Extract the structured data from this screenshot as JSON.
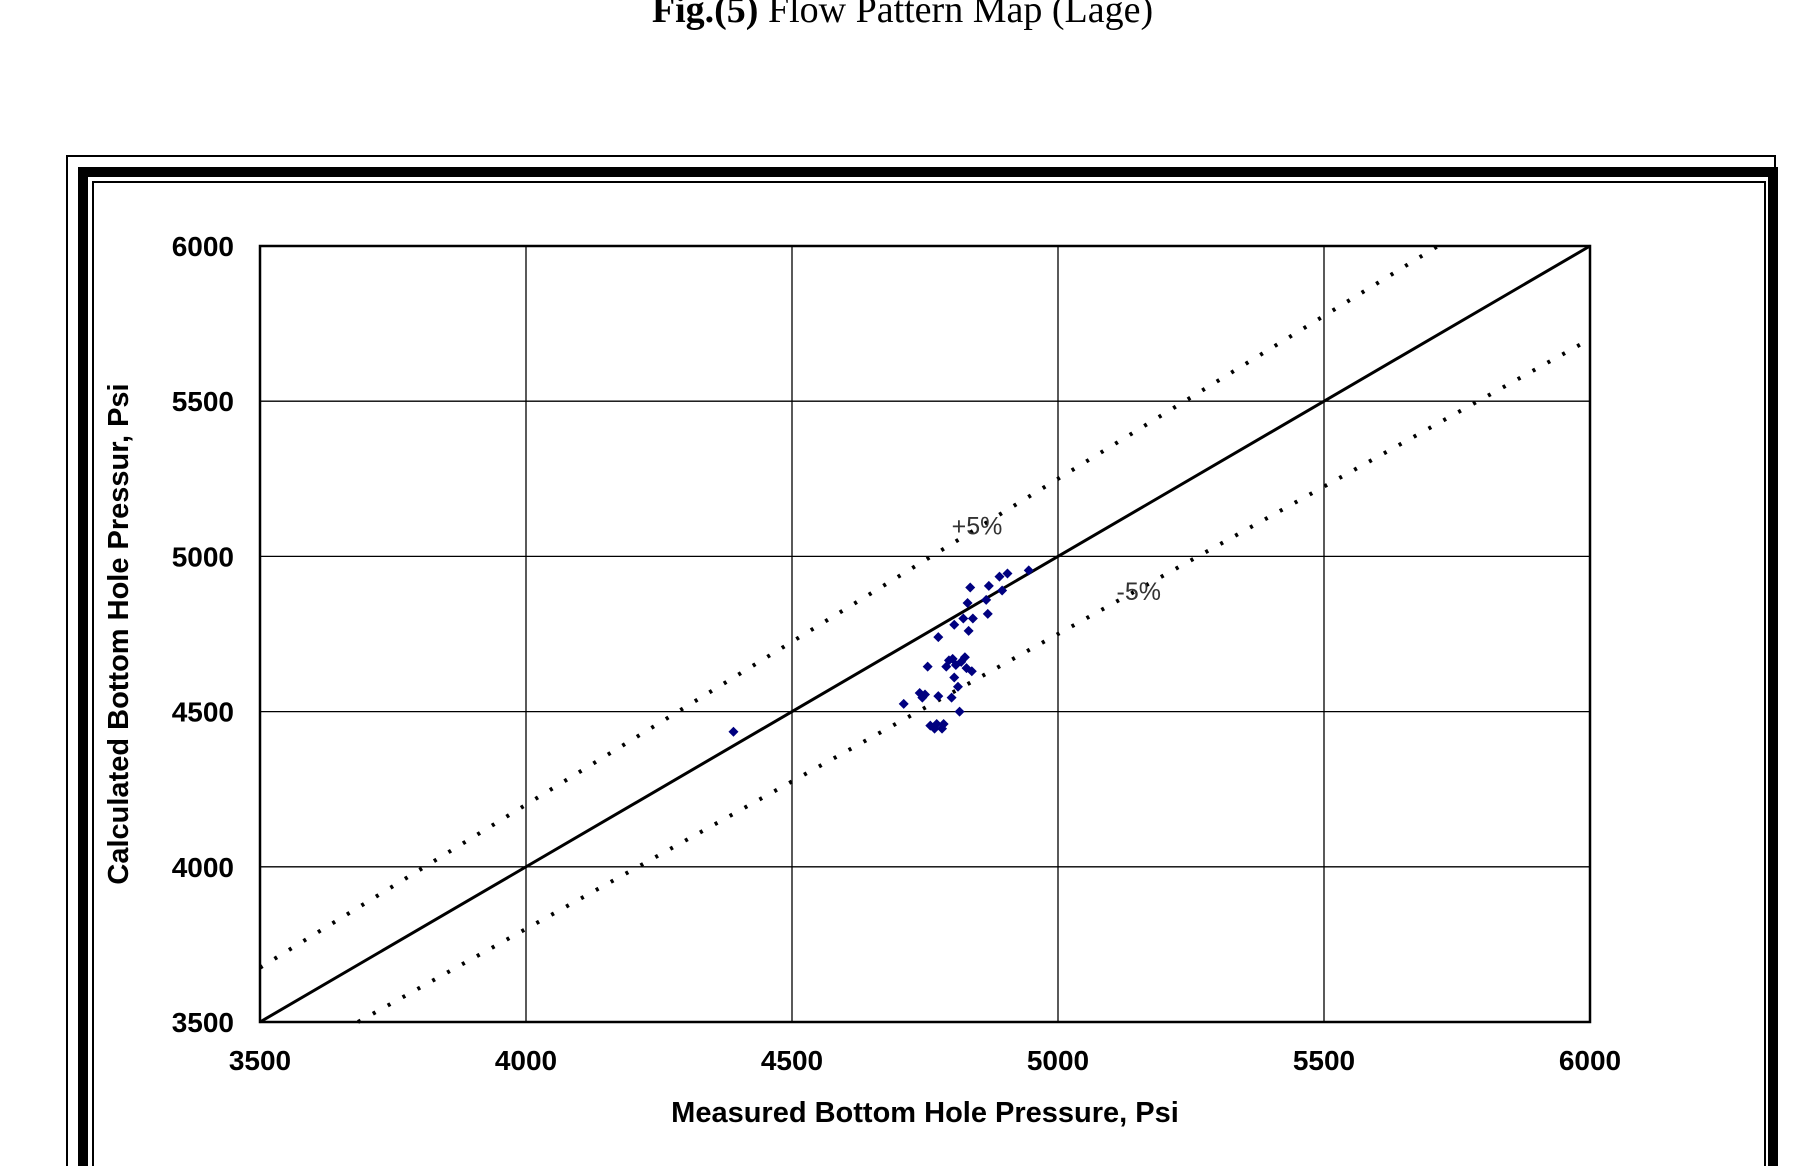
{
  "figure": {
    "title_bold": "Fig.(5)",
    "title_rest": " Flow Pattern Map (Lage)"
  },
  "chart_data": {
    "type": "scatter",
    "xlabel": "Measured Bottom Hole Pressure, Psi",
    "ylabel": "Calculated Bottom Hole Pressur, Psi",
    "xlim": [
      3500,
      6000
    ],
    "ylim": [
      3500,
      6000
    ],
    "xticks": [
      "3500",
      "4000",
      "4500",
      "5000",
      "5500",
      "6000"
    ],
    "yticks": [
      "3500",
      "4000",
      "4500",
      "5000",
      "5500",
      "6000"
    ],
    "grid": true,
    "marker_color": "#000080",
    "reference_lines": [
      {
        "label": "",
        "slope": 1.0,
        "style": "solid"
      },
      {
        "label": "+5%",
        "slope": 1.05,
        "style": "dotted"
      },
      {
        "label": "-5%",
        "slope": 0.95,
        "style": "dotted"
      }
    ],
    "annotations": [
      {
        "text": "+5%",
        "x": 4800,
        "y": 5070
      },
      {
        "text": "-5%",
        "x": 5110,
        "y": 4860
      }
    ],
    "points": [
      {
        "x": 4390,
        "y": 4435
      },
      {
        "x": 4710,
        "y": 4525
      },
      {
        "x": 4740,
        "y": 4560
      },
      {
        "x": 4745,
        "y": 4545
      },
      {
        "x": 4750,
        "y": 4555
      },
      {
        "x": 4755,
        "y": 4645
      },
      {
        "x": 4760,
        "y": 4455
      },
      {
        "x": 4768,
        "y": 4445
      },
      {
        "x": 4772,
        "y": 4460
      },
      {
        "x": 4775,
        "y": 4550
      },
      {
        "x": 4775,
        "y": 4740
      },
      {
        "x": 4782,
        "y": 4445
      },
      {
        "x": 4785,
        "y": 4460
      },
      {
        "x": 4790,
        "y": 4645
      },
      {
        "x": 4795,
        "y": 4665
      },
      {
        "x": 4800,
        "y": 4545
      },
      {
        "x": 4802,
        "y": 4670
      },
      {
        "x": 4805,
        "y": 4610
      },
      {
        "x": 4805,
        "y": 4780
      },
      {
        "x": 4808,
        "y": 4650
      },
      {
        "x": 4812,
        "y": 4580
      },
      {
        "x": 4815,
        "y": 4500
      },
      {
        "x": 4818,
        "y": 4660
      },
      {
        "x": 4822,
        "y": 4800
      },
      {
        "x": 4825,
        "y": 4675
      },
      {
        "x": 4828,
        "y": 4640
      },
      {
        "x": 4830,
        "y": 4850
      },
      {
        "x": 4832,
        "y": 4760
      },
      {
        "x": 4835,
        "y": 4900
      },
      {
        "x": 4838,
        "y": 4630
      },
      {
        "x": 4840,
        "y": 4800
      },
      {
        "x": 4865,
        "y": 4860
      },
      {
        "x": 4868,
        "y": 4815
      },
      {
        "x": 4870,
        "y": 4905
      },
      {
        "x": 4890,
        "y": 4935
      },
      {
        "x": 4895,
        "y": 4890
      },
      {
        "x": 4905,
        "y": 4945
      },
      {
        "x": 4945,
        "y": 4955
      }
    ]
  }
}
